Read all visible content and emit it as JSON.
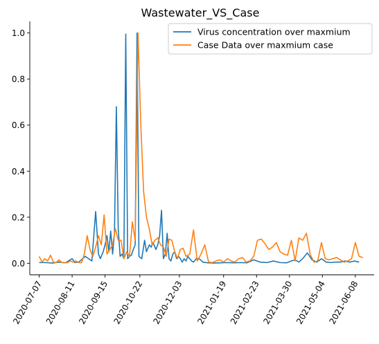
{
  "chart_data": {
    "type": "line",
    "title": "Wastewater_VS_Case",
    "xlabel": "",
    "ylabel": "",
    "x_axis": "date",
    "xlim": [
      "2020-06-27",
      "2021-06-28"
    ],
    "ylim": [
      -0.05,
      1.05
    ],
    "x_ticks": [
      "2020-07-07",
      "2020-08-11",
      "2020-09-15",
      "2020-10-22",
      "2020-12-03",
      "2021-01-19",
      "2021-02-23",
      "2021-03-30",
      "2021-05-04",
      "2021-06-08"
    ],
    "y_ticks": [
      "0.0",
      "0.2",
      "0.4",
      "0.6",
      "0.8",
      "1.0"
    ],
    "grid": false,
    "legend_placement": "top-right",
    "series": [
      {
        "name": "Virus concentration over maxmium",
        "color": "#1f77b4",
        "x": [
          "2020-07-07",
          "2020-07-14",
          "2020-07-21",
          "2020-07-28",
          "2020-08-04",
          "2020-08-11",
          "2020-08-14",
          "2020-08-18",
          "2020-08-25",
          "2020-09-01",
          "2020-09-05",
          "2020-09-08",
          "2020-09-10",
          "2020-09-13",
          "2020-09-15",
          "2020-09-17",
          "2020-09-19",
          "2020-09-21",
          "2020-09-23",
          "2020-09-25",
          "2020-09-27",
          "2020-09-29",
          "2020-10-01",
          "2020-10-03",
          "2020-10-05",
          "2020-10-07",
          "2020-10-09",
          "2020-10-11",
          "2020-10-13",
          "2020-10-15",
          "2020-10-17",
          "2020-10-19",
          "2020-10-21",
          "2020-10-24",
          "2020-10-27",
          "2020-10-29",
          "2020-11-01",
          "2020-11-03",
          "2020-11-05",
          "2020-11-08",
          "2020-11-10",
          "2020-11-12",
          "2020-11-14",
          "2020-11-16",
          "2020-11-18",
          "2020-11-20",
          "2020-11-22",
          "2020-11-24",
          "2020-11-26",
          "2020-11-28",
          "2020-11-30",
          "2020-12-02",
          "2020-12-04",
          "2020-12-06",
          "2020-12-08",
          "2020-12-10",
          "2020-12-12",
          "2020-12-14",
          "2020-12-16",
          "2020-12-18",
          "2020-12-21",
          "2020-12-24",
          "2020-12-28",
          "2021-01-02",
          "2021-01-09",
          "2021-01-16",
          "2021-01-23",
          "2021-01-30",
          "2021-02-06",
          "2021-02-13",
          "2021-02-20",
          "2021-02-27",
          "2021-03-06",
          "2021-03-13",
          "2021-03-20",
          "2021-03-27",
          "2021-04-01",
          "2021-04-05",
          "2021-04-09",
          "2021-04-13",
          "2021-04-18",
          "2021-04-23",
          "2021-04-28",
          "2021-05-03",
          "2021-05-08",
          "2021-05-13",
          "2021-05-18",
          "2021-05-23",
          "2021-05-28",
          "2021-06-02",
          "2021-06-07",
          "2021-06-12"
        ],
        "values": [
          0.003,
          0.003,
          0.001,
          0.005,
          0.002,
          0.02,
          0.003,
          0.005,
          0.03,
          0.01,
          0.225,
          0.04,
          0.02,
          0.05,
          0.08,
          0.12,
          0.05,
          0.14,
          0.04,
          0.13,
          0.68,
          0.15,
          0.03,
          0.04,
          0.02,
          0.995,
          0.02,
          0.03,
          0.035,
          0.06,
          0.08,
          1.0,
          0.03,
          0.02,
          0.1,
          0.05,
          0.08,
          0.07,
          0.09,
          0.06,
          0.08,
          0.12,
          0.23,
          0.02,
          0.04,
          0.13,
          0.02,
          0.01,
          0.04,
          0.05,
          0.02,
          0.03,
          0.02,
          0.005,
          0.02,
          0.01,
          0.03,
          0.02,
          0.01,
          0.005,
          0.02,
          0.02,
          0.005,
          0.002,
          0.001,
          0.002,
          0.003,
          0.002,
          0.003,
          0.002,
          0.015,
          0.005,
          0.003,
          0.01,
          0.003,
          0.002,
          0.01,
          0.015,
          0.005,
          0.02,
          0.045,
          0.015,
          0.005,
          0.02,
          0.005,
          0.003,
          0.005,
          0.005,
          0.01,
          0.005,
          0.01,
          0.005
        ]
      },
      {
        "name": "Case Data over maxmium case",
        "color": "#ff7f0e",
        "x": [
          "2020-07-07",
          "2020-07-10",
          "2020-07-13",
          "2020-07-16",
          "2020-07-19",
          "2020-07-22",
          "2020-07-25",
          "2020-07-28",
          "2020-07-31",
          "2020-08-03",
          "2020-08-06",
          "2020-08-09",
          "2020-08-12",
          "2020-08-15",
          "2020-08-18",
          "2020-08-21",
          "2020-08-24",
          "2020-08-27",
          "2020-08-30",
          "2020-09-02",
          "2020-09-05",
          "2020-09-08",
          "2020-09-11",
          "2020-09-14",
          "2020-09-17",
          "2020-09-20",
          "2020-09-23",
          "2020-09-26",
          "2020-09-29",
          "2020-10-02",
          "2020-10-05",
          "2020-10-08",
          "2020-10-11",
          "2020-10-14",
          "2020-10-17",
          "2020-10-20",
          "2020-10-23",
          "2020-10-26",
          "2020-10-29",
          "2020-11-01",
          "2020-11-04",
          "2020-11-07",
          "2020-11-10",
          "2020-11-13",
          "2020-11-16",
          "2020-11-19",
          "2020-11-22",
          "2020-11-25",
          "2020-11-28",
          "2020-12-01",
          "2020-12-04",
          "2020-12-07",
          "2020-12-10",
          "2020-12-14",
          "2020-12-18",
          "2020-12-22",
          "2020-12-26",
          "2020-12-30",
          "2021-01-03",
          "2021-01-07",
          "2021-01-11",
          "2021-01-15",
          "2021-01-19",
          "2021-01-23",
          "2021-01-27",
          "2021-01-31",
          "2021-02-04",
          "2021-02-08",
          "2021-02-12",
          "2021-02-16",
          "2021-02-20",
          "2021-02-24",
          "2021-02-28",
          "2021-03-04",
          "2021-03-08",
          "2021-03-12",
          "2021-03-16",
          "2021-03-20",
          "2021-03-24",
          "2021-03-28",
          "2021-04-01",
          "2021-04-05",
          "2021-04-09",
          "2021-04-13",
          "2021-04-17",
          "2021-04-21",
          "2021-04-25",
          "2021-04-29",
          "2021-05-03",
          "2021-05-07",
          "2021-05-11",
          "2021-05-15",
          "2021-05-19",
          "2021-05-23",
          "2021-05-27",
          "2021-05-31",
          "2021-06-04",
          "2021-06-08",
          "2021-06-12",
          "2021-06-16"
        ],
        "values": [
          0.03,
          0.005,
          0.02,
          0.01,
          0.035,
          0.005,
          0.003,
          0.015,
          0.003,
          0.002,
          0.003,
          0.01,
          0.005,
          0.01,
          0.003,
          0.002,
          0.04,
          0.12,
          0.06,
          0.03,
          0.07,
          0.12,
          0.08,
          0.21,
          0.04,
          0.06,
          0.08,
          0.15,
          0.1,
          0.1,
          0.02,
          0.05,
          0.03,
          0.18,
          0.1,
          1.0,
          0.6,
          0.31,
          0.2,
          0.15,
          0.08,
          0.1,
          0.11,
          0.08,
          0.07,
          0.03,
          0.105,
          0.1,
          0.05,
          0.02,
          0.06,
          0.065,
          0.03,
          0.04,
          0.145,
          0.01,
          0.04,
          0.08,
          0.005,
          0.003,
          0.01,
          0.015,
          0.005,
          0.02,
          0.01,
          0.005,
          0.02,
          0.025,
          0.005,
          0.01,
          0.03,
          0.1,
          0.105,
          0.085,
          0.06,
          0.07,
          0.09,
          0.05,
          0.04,
          0.035,
          0.1,
          0.01,
          0.11,
          0.1,
          0.13,
          0.04,
          0.005,
          0.01,
          0.09,
          0.02,
          0.015,
          0.02,
          0.025,
          0.015,
          0.005,
          0.01,
          0.02,
          0.09,
          0.03,
          0.025
        ]
      }
    ]
  }
}
